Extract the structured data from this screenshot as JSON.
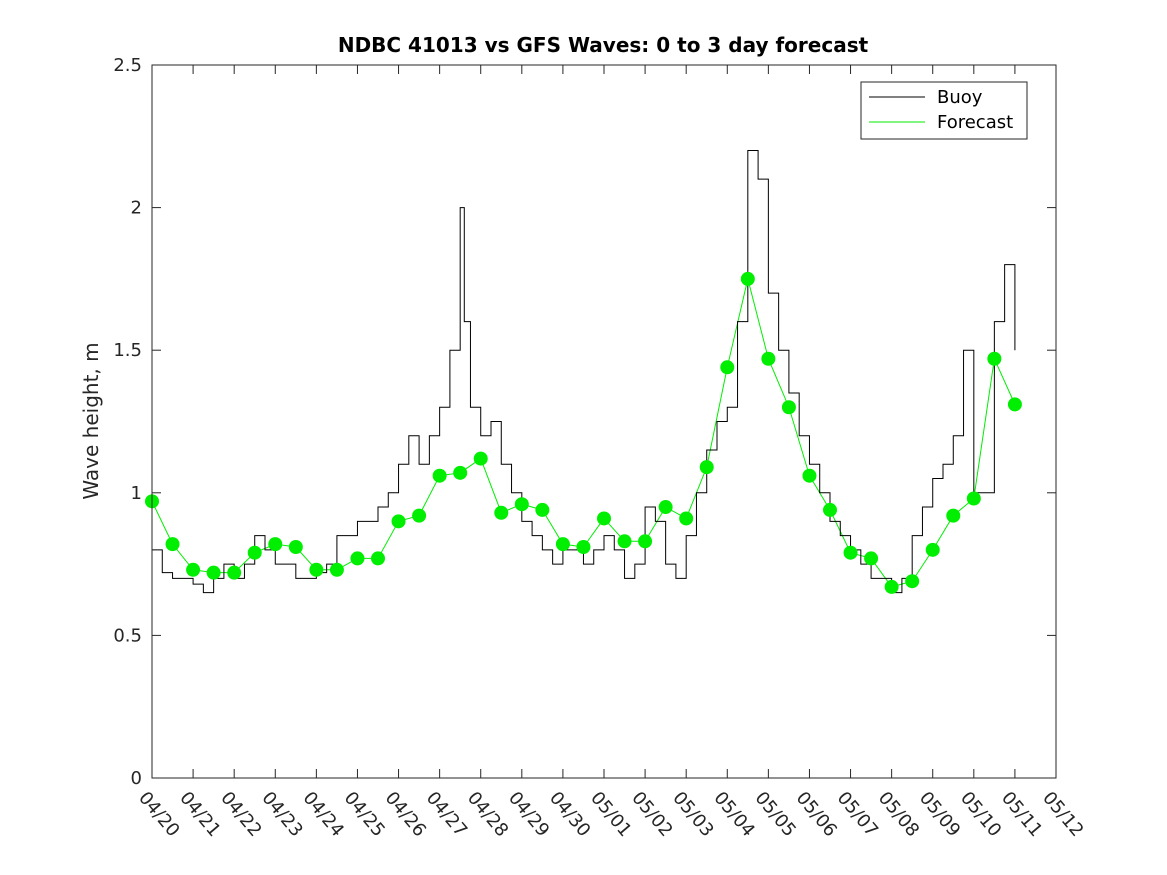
{
  "chart_data": {
    "type": "line",
    "title": "NDBC 41013 vs GFS Waves: 0 to 3 day forecast",
    "xlabel": "",
    "ylabel": "Wave height, m",
    "x_tick_labels": [
      "04/20",
      "04/21",
      "04/22",
      "04/23",
      "04/24",
      "04/25",
      "04/26",
      "04/27",
      "04/28",
      "04/29",
      "04/30",
      "05/01",
      "05/02",
      "05/03",
      "05/04",
      "05/05",
      "05/06",
      "05/07",
      "05/08",
      "05/09",
      "05/10",
      "05/11",
      "05/12"
    ],
    "xlim": [
      0,
      22
    ],
    "ylim": [
      0,
      2.5
    ],
    "y_ticks": [
      0,
      0.5,
      1,
      1.5,
      2,
      2.5
    ],
    "y_tick_labels": [
      "0",
      "0.5",
      "1",
      "1.5",
      "2",
      "2.5"
    ],
    "legend_position": "top-right",
    "grid": false,
    "colors": {
      "buoy": "#000000",
      "forecast": "#00ee00",
      "markers": "#00ee00"
    },
    "series": [
      {
        "name": "Buoy",
        "x": [
          0,
          0.25,
          0.5,
          0.75,
          1,
          1.25,
          1.5,
          1.75,
          2,
          2.25,
          2.5,
          2.75,
          3,
          3.25,
          3.5,
          3.75,
          4,
          4.25,
          4.5,
          4.75,
          5,
          5.25,
          5.5,
          5.75,
          6,
          6.25,
          6.5,
          6.75,
          7,
          7.25,
          7.5,
          7.6,
          7.75,
          8,
          8.25,
          8.5,
          8.75,
          9,
          9.25,
          9.5,
          9.75,
          10,
          10.25,
          10.5,
          10.75,
          11,
          11.25,
          11.5,
          11.75,
          12,
          12.25,
          12.5,
          12.75,
          13,
          13.25,
          13.5,
          13.75,
          14,
          14.25,
          14.5,
          14.75,
          15,
          15.25,
          15.5,
          15.75,
          16,
          16.25,
          16.5,
          16.75,
          17,
          17.25,
          17.5,
          17.75,
          18,
          18.25,
          18.5,
          18.75,
          19,
          19.25,
          19.5,
          19.75,
          20,
          20.25,
          20.5,
          20.75,
          21
        ],
        "y": [
          0.8,
          0.72,
          0.7,
          0.7,
          0.68,
          0.65,
          0.7,
          0.75,
          0.7,
          0.75,
          0.85,
          0.8,
          0.75,
          0.75,
          0.7,
          0.7,
          0.72,
          0.75,
          0.85,
          0.85,
          0.9,
          0.9,
          0.95,
          1.0,
          1.1,
          1.2,
          1.1,
          1.2,
          1.3,
          1.5,
          2.0,
          1.6,
          1.3,
          1.2,
          1.25,
          1.1,
          1.0,
          0.9,
          0.85,
          0.8,
          0.75,
          0.8,
          0.8,
          0.75,
          0.8,
          0.85,
          0.8,
          0.7,
          0.75,
          0.95,
          0.9,
          0.75,
          0.7,
          0.85,
          1.0,
          1.15,
          1.25,
          1.3,
          1.6,
          2.2,
          2.1,
          1.7,
          1.5,
          1.35,
          1.2,
          1.1,
          1.0,
          0.9,
          0.85,
          0.8,
          0.75,
          0.7,
          0.7,
          0.65,
          0.7,
          0.85,
          0.95,
          1.05,
          1.1,
          1.2,
          1.5,
          1.0,
          1.0,
          1.6,
          1.8,
          1.5
        ]
      },
      {
        "name": "Forecast",
        "x": [
          0,
          0.5,
          1,
          1.5,
          2,
          2.5,
          3,
          3.5,
          4,
          4.5,
          5,
          5.5,
          6,
          6.5,
          7,
          7.5,
          8,
          8.5,
          9,
          9.5,
          10,
          10.5,
          11,
          11.5,
          12,
          12.5,
          13,
          13.5,
          14,
          14.5,
          15,
          15.5,
          16,
          16.5,
          17,
          17.5,
          18,
          18.5,
          19,
          19.5,
          20,
          20.5,
          21
        ],
        "y": [
          0.97,
          0.82,
          0.73,
          0.72,
          0.72,
          0.79,
          0.82,
          0.81,
          0.73,
          0.73,
          0.77,
          0.77,
          0.9,
          0.92,
          1.06,
          1.07,
          1.12,
          0.93,
          0.96,
          0.94,
          0.82,
          0.81,
          0.91,
          0.83,
          0.83,
          0.95,
          0.91,
          1.09,
          1.44,
          1.75,
          1.47,
          1.3,
          1.06,
          0.94,
          0.79,
          0.77,
          0.67,
          0.69,
          0.8,
          0.92,
          0.98,
          1.47,
          1.31
        ]
      }
    ]
  },
  "legend": {
    "items": [
      {
        "label": "Buoy"
      },
      {
        "label": "Forecast"
      }
    ]
  }
}
